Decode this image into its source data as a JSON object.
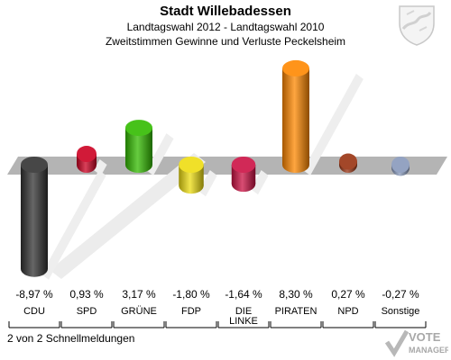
{
  "chart_data": {
    "type": "bar",
    "title": "Stadt Willebadessen",
    "subtitle": "Landtagswahl 2012 - Landtagswahl 2010",
    "subtitle2": "Zweitstimmen Gewinne und Verluste Peckelsheim",
    "categories": [
      "CDU",
      "SPD",
      "GRÜNE",
      "FDP",
      "DIE LINKE",
      "PIRATEN",
      "NPD",
      "Sonstige"
    ],
    "values": [
      -8.97,
      0.93,
      3.17,
      -1.8,
      -1.64,
      8.3,
      0.27,
      -0.27
    ],
    "value_labels": [
      "-8,97 %",
      "0,93 %",
      "3,17 %",
      "-1,80 %",
      "-1,64 %",
      "8,30 %",
      "0,27 %",
      "-0,27 %"
    ],
    "colors": [
      "#333333",
      "#cc0022",
      "#33bb00",
      "#eedd11",
      "#cc1144",
      "#ff8800",
      "#993311",
      "#8899bb"
    ],
    "ylim": [
      -9.5,
      9.0
    ],
    "grid": false,
    "legend": "none"
  },
  "footer": "2 von 2 Schnellmeldungen",
  "logo_text": [
    "VOTE",
    "MANAGER"
  ]
}
